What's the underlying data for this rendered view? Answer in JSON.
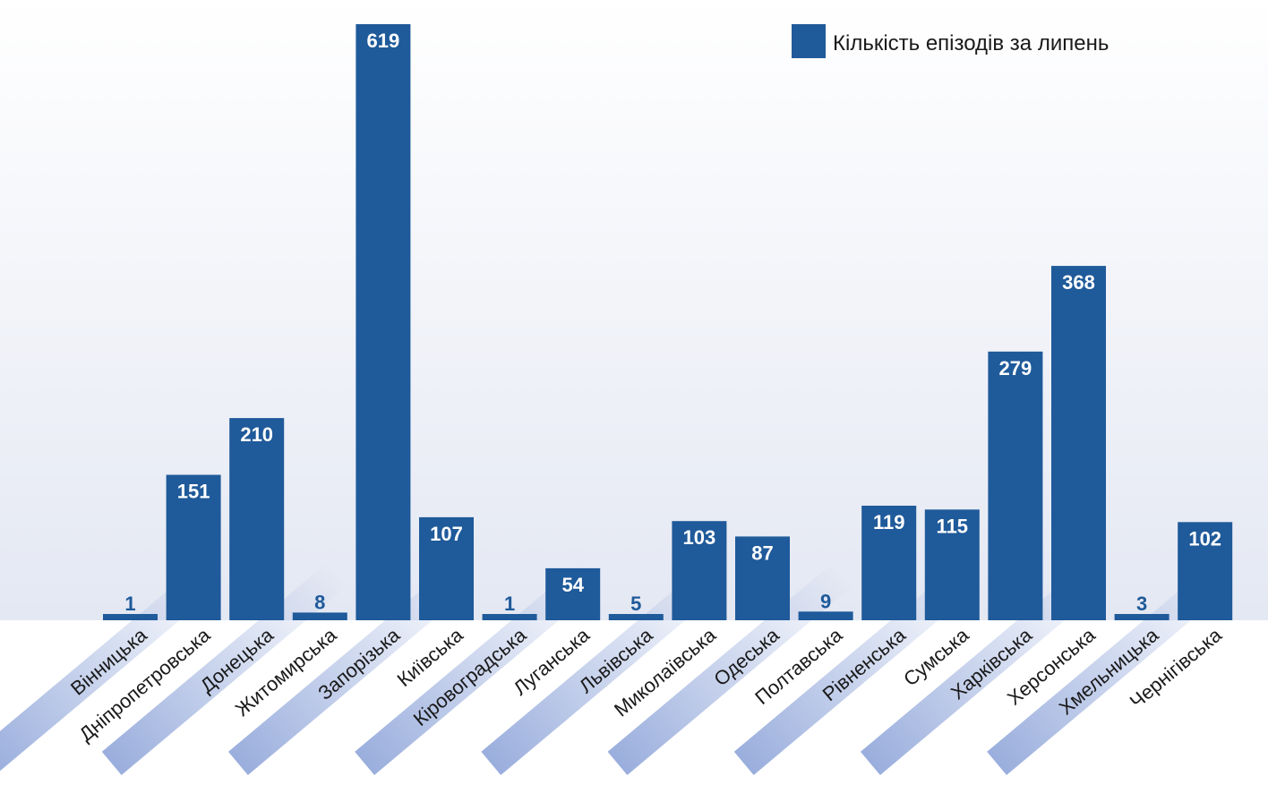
{
  "chart_data": {
    "type": "bar",
    "categories": [
      "Вінницька",
      "Дніпропетровська",
      "Донецька",
      "Житомирська",
      "Запорізька",
      "Київська",
      "Кіровоградська",
      "Луганська",
      "Львівська",
      "Миколаївська",
      "Одеська",
      "Полтавська",
      "Рівненська",
      "Сумська",
      "Харківська",
      "Херсонська",
      "Хмельницька",
      "Чернігівська"
    ],
    "series": [
      {
        "name": "Кількість епізодів за липень",
        "values": [
          1,
          151,
          210,
          8,
          619,
          107,
          1,
          54,
          5,
          103,
          87,
          9,
          119,
          115,
          279,
          368,
          3,
          102
        ]
      }
    ],
    "ylim": [
      0,
      619
    ],
    "grid": false,
    "legend": "top-right",
    "colors": {
      "bar": "#1f5a9a",
      "label_on_bar": "#ffffff",
      "label_above_bar": "#1f5a9a",
      "axis_text": "#1a1a1a",
      "plot_bg_top": "#ffffff",
      "plot_bg_bottom": "#e4e8f3",
      "highlight": "#9aaedd"
    },
    "highlighted_categories": [
      "Вінницька",
      "Донецька",
      "Запорізька",
      "Кіровоградська",
      "Львівська",
      "Одеська",
      "Рівненська",
      "Харківська",
      "Хмельницька"
    ]
  }
}
